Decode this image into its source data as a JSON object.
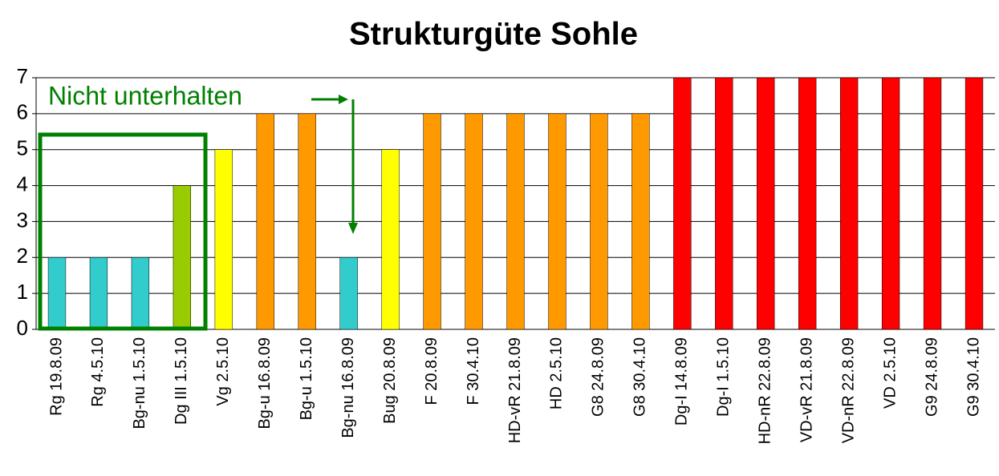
{
  "chart_data": {
    "type": "bar",
    "title": "Strukturgüte Sohle",
    "categories": [
      "Rg 19.8.09",
      "Rg 4.5.10",
      "Bg-nu 1.5.10",
      "Dg III 1.5.10",
      "Vg 2.5.10",
      "Bg-u 16.8.09",
      "Bg-u 1.5.10",
      "Bg-nu 16.8.09",
      "Bug 20.8.09",
      "F 20.8.09",
      "F 30.4.10",
      "HD-vR 21.8.09",
      "HD 2.5.10",
      "G8 24.8.09",
      "G8 30.4.10",
      "Dg-I 14.8.09",
      "Dg-I 1.5.10",
      "HD-nR 22.8.09",
      "VD-vR 21.8.09",
      "VD-nR 22.8.09",
      "VD 2.5.10",
      "G9 24.8.09",
      "G9 30.4.10"
    ],
    "values": [
      2,
      2,
      2,
      4,
      5,
      6,
      6,
      2,
      5,
      6,
      6,
      6,
      6,
      6,
      6,
      7,
      7,
      7,
      7,
      7,
      7,
      7,
      7
    ],
    "colors": [
      "#33cccc",
      "#33cccc",
      "#33cccc",
      "#99cc00",
      "#ffff00",
      "#ff9900",
      "#ff9900",
      "#33cccc",
      "#ffff00",
      "#ff9900",
      "#ff9900",
      "#ff9900",
      "#ff9900",
      "#ff9900",
      "#ff9900",
      "#ff0000",
      "#ff0000",
      "#ff0000",
      "#ff0000",
      "#ff0000",
      "#ff0000",
      "#ff0000",
      "#ff0000"
    ],
    "ylim": [
      0,
      7
    ],
    "yticks": [
      0,
      1,
      2,
      3,
      4,
      5,
      6,
      7
    ],
    "grid": true,
    "annotation": "Nicht unterhalten"
  }
}
